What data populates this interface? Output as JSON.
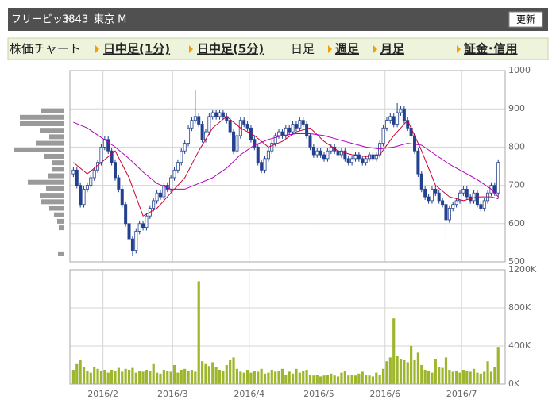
{
  "header": {
    "name": "フリービット",
    "code": "3843",
    "market": "東京 M",
    "button": "更新"
  },
  "tabs": [
    "株価チャート",
    "日中足(1分)",
    "日中足(5分)",
    "日足",
    "週足",
    "月足",
    "証金･信用"
  ],
  "chart_data": [
    {
      "type": "candlestick",
      "open": [
        730,
        740,
        700,
        650,
        690,
        700,
        720,
        740,
        760,
        800,
        820,
        790,
        760,
        720,
        690,
        650,
        600,
        560,
        530,
        580,
        600,
        590,
        620,
        640,
        660,
        680,
        670,
        700,
        690,
        720,
        740,
        760,
        790,
        810,
        850,
        870,
        880,
        860,
        820,
        840,
        880,
        890,
        880,
        890,
        880,
        870,
        840,
        790,
        830,
        870,
        860,
        850,
        820,
        800,
        760,
        740,
        770,
        790,
        810,
        830,
        840,
        830,
        850,
        840,
        860,
        850,
        870,
        860,
        830,
        800,
        780,
        790,
        780,
        770,
        790,
        800,
        790,
        780,
        790,
        770,
        760,
        770,
        780,
        770,
        760,
        770,
        780,
        770,
        780,
        810,
        850,
        870,
        880,
        860,
        890,
        900,
        870,
        850,
        830,
        790,
        730,
        690,
        670,
        660,
        690,
        680,
        660,
        650,
        610,
        640,
        650,
        660,
        680,
        690,
        670,
        660,
        680,
        650,
        640,
        660,
        680,
        700,
        680
      ],
      "high": [
        748,
        748,
        708,
        698,
        708,
        728,
        748,
        768,
        808,
        828,
        828,
        798,
        768,
        728,
        698,
        658,
        608,
        568,
        588,
        608,
        608,
        628,
        648,
        668,
        688,
        688,
        708,
        708,
        728,
        748,
        768,
        798,
        818,
        858,
        878,
        950,
        888,
        868,
        848,
        888,
        898,
        898,
        898,
        898,
        888,
        878,
        848,
        838,
        878,
        878,
        868,
        858,
        828,
        808,
        768,
        778,
        798,
        818,
        838,
        848,
        848,
        858,
        858,
        868,
        868,
        878,
        878,
        868,
        838,
        808,
        798,
        798,
        788,
        798,
        808,
        808,
        798,
        798,
        798,
        778,
        778,
        788,
        788,
        778,
        778,
        788,
        788,
        788,
        818,
        858,
        878,
        888,
        888,
        915,
        908,
        908,
        878,
        858,
        838,
        798,
        738,
        698,
        678,
        698,
        698,
        688,
        668,
        658,
        648,
        658,
        668,
        688,
        698,
        698,
        678,
        688,
        688,
        658,
        668,
        688,
        708,
        708,
        768
      ],
      "low": [
        722,
        692,
        642,
        642,
        682,
        692,
        712,
        732,
        752,
        792,
        782,
        752,
        712,
        682,
        642,
        592,
        552,
        515,
        522,
        572,
        582,
        582,
        612,
        632,
        652,
        662,
        662,
        682,
        682,
        712,
        732,
        752,
        782,
        802,
        842,
        862,
        852,
        812,
        812,
        832,
        872,
        872,
        872,
        872,
        862,
        832,
        782,
        782,
        822,
        852,
        842,
        812,
        792,
        752,
        732,
        732,
        762,
        782,
        802,
        822,
        822,
        822,
        832,
        832,
        842,
        842,
        852,
        822,
        792,
        772,
        772,
        772,
        762,
        762,
        782,
        782,
        772,
        772,
        762,
        752,
        752,
        762,
        762,
        752,
        752,
        762,
        762,
        762,
        772,
        802,
        842,
        862,
        852,
        852,
        882,
        862,
        842,
        822,
        782,
        722,
        682,
        662,
        652,
        652,
        672,
        652,
        642,
        560,
        602,
        632,
        642,
        652,
        672,
        662,
        652,
        652,
        642,
        632,
        632,
        652,
        672,
        672,
        665
      ],
      "close": [
        740,
        700,
        650,
        690,
        700,
        720,
        740,
        760,
        800,
        820,
        790,
        760,
        720,
        690,
        650,
        600,
        560,
        530,
        580,
        600,
        590,
        620,
        640,
        660,
        680,
        670,
        700,
        690,
        720,
        740,
        760,
        790,
        810,
        850,
        870,
        880,
        860,
        820,
        840,
        880,
        890,
        880,
        890,
        880,
        870,
        840,
        790,
        830,
        870,
        860,
        850,
        820,
        800,
        760,
        740,
        770,
        790,
        810,
        830,
        840,
        830,
        850,
        840,
        860,
        850,
        870,
        860,
        830,
        800,
        780,
        790,
        780,
        770,
        790,
        800,
        790,
        780,
        790,
        770,
        760,
        770,
        780,
        770,
        760,
        770,
        780,
        770,
        780,
        810,
        850,
        870,
        880,
        860,
        890,
        900,
        870,
        850,
        830,
        790,
        730,
        690,
        670,
        660,
        690,
        680,
        660,
        650,
        610,
        640,
        650,
        660,
        680,
        690,
        670,
        660,
        680,
        650,
        640,
        660,
        680,
        700,
        680,
        760
      ],
      "rise_color": "#ffffff",
      "fall_color": "#23418f",
      "outline_color": "#23418f",
      "series": [
        {
          "color": "#cc0033",
          "x": [
            0,
            4,
            8,
            12,
            16,
            20,
            24,
            28,
            32,
            36,
            40,
            44,
            48,
            52,
            56,
            60,
            64,
            68,
            72,
            76,
            80,
            84,
            88,
            92,
            96,
            100,
            104,
            108,
            112,
            116,
            120,
            122
          ],
          "values": [
            760,
            730,
            760,
            790,
            720,
            620,
            640,
            680,
            720,
            790,
            850,
            880,
            850,
            830,
            800,
            815,
            840,
            850,
            815,
            790,
            780,
            775,
            780,
            830,
            870,
            790,
            700,
            670,
            660,
            670,
            670,
            665
          ]
        },
        {
          "color": "#b000c0",
          "x": [
            0,
            4,
            8,
            12,
            16,
            20,
            24,
            28,
            32,
            36,
            40,
            44,
            48,
            52,
            56,
            60,
            64,
            68,
            72,
            76,
            80,
            84,
            88,
            92,
            96,
            100,
            104,
            108,
            112,
            116,
            120,
            122
          ],
          "values": [
            865,
            850,
            825,
            800,
            770,
            735,
            705,
            690,
            690,
            705,
            720,
            745,
            780,
            805,
            820,
            830,
            835,
            835,
            830,
            820,
            810,
            800,
            795,
            800,
            810,
            805,
            780,
            755,
            735,
            715,
            690,
            670
          ]
        }
      ],
      "volume_profile": {
        "color": "#9a9a9a",
        "prices": [
          895,
          878,
          861,
          844,
          827,
          810,
          793,
          776,
          759,
          742,
          725,
          708,
          691,
          674,
          657,
          640,
          623,
          606,
          589,
          521
        ],
        "values": [
          28,
          55,
          55,
          30,
          18,
          35,
          62,
          25,
          15,
          15,
          20,
          45,
          22,
          30,
          28,
          18,
          12,
          8,
          6,
          7
        ]
      },
      "xlim": [
        -1,
        124
      ],
      "ylim": [
        500,
        1000
      ],
      "yticks": [
        500,
        600,
        700,
        800,
        900,
        1000
      ],
      "grid": true
    },
    {
      "type": "bar",
      "color": "#9db62e",
      "values": [
        150000,
        210000,
        250000,
        180000,
        140000,
        120000,
        180000,
        160000,
        140000,
        150000,
        120000,
        150000,
        140000,
        170000,
        130000,
        160000,
        150000,
        170000,
        120000,
        140000,
        130000,
        150000,
        140000,
        210000,
        120000,
        110000,
        150000,
        140000,
        130000,
        200000,
        120000,
        150000,
        160000,
        140000,
        150000,
        130000,
        1080000,
        240000,
        210000,
        190000,
        230000,
        180000,
        150000,
        140000,
        200000,
        250000,
        280000,
        160000,
        130000,
        120000,
        150000,
        120000,
        140000,
        130000,
        160000,
        110000,
        120000,
        150000,
        130000,
        140000,
        160000,
        100000,
        130000,
        110000,
        160000,
        120000,
        140000,
        150000,
        100000,
        90000,
        100000,
        80000,
        90000,
        100000,
        110000,
        90000,
        80000,
        120000,
        140000,
        90000,
        100000,
        90000,
        110000,
        130000,
        100000,
        90000,
        80000,
        120000,
        100000,
        160000,
        240000,
        280000,
        690000,
        300000,
        260000,
        250000,
        230000,
        400000,
        250000,
        330000,
        200000,
        150000,
        140000,
        120000,
        260000,
        180000,
        170000,
        280000,
        150000,
        130000,
        140000,
        120000,
        150000,
        140000,
        130000,
        160000,
        120000,
        110000,
        130000,
        240000,
        130000,
        180000,
        390000
      ],
      "xlim": [
        -1,
        124
      ],
      "xticks": [
        {
          "value": 8.5,
          "label": "2016/2"
        },
        {
          "value": 28.5,
          "label": "2016/3"
        },
        {
          "value": 50.5,
          "label": "2016/4"
        },
        {
          "value": 70.5,
          "label": "2016/5"
        },
        {
          "value": 89.5,
          "label": "2016/6"
        },
        {
          "value": 111.5,
          "label": "2016/7"
        }
      ],
      "ylim": [
        0,
        1200000
      ],
      "yticks": [
        {
          "value": 0,
          "label": "0K"
        },
        {
          "value": 400000,
          "label": "400K"
        },
        {
          "value": 800000,
          "label": "800K"
        },
        {
          "value": 1200000,
          "label": "1200K"
        }
      ],
      "grid": true
    }
  ]
}
